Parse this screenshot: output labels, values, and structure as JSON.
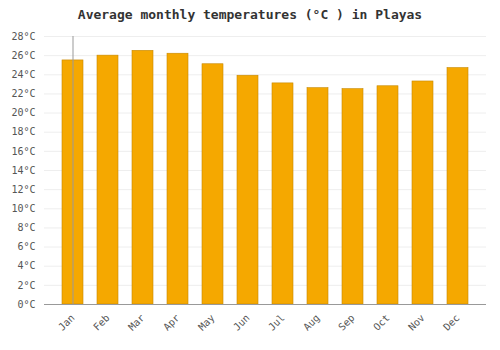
{
  "chart_data": {
    "type": "bar",
    "title": "Average monthly temperatures (°C ) in Playas",
    "categories": [
      "Jan",
      "Feb",
      "Mar",
      "Apr",
      "May",
      "Jun",
      "Jul",
      "Aug",
      "Sep",
      "Oct",
      "Nov",
      "Dec"
    ],
    "values": [
      25.5,
      26.0,
      26.5,
      26.2,
      25.1,
      23.9,
      23.1,
      22.6,
      22.5,
      22.8,
      23.3,
      24.7
    ],
    "color": "#F5A800",
    "ylim": [
      0,
      28
    ],
    "yticks": [
      {
        "value": 0,
        "label": "0°C"
      },
      {
        "value": 2,
        "label": "2°C"
      },
      {
        "value": 4,
        "label": "4°C"
      },
      {
        "value": 6,
        "label": "6°C"
      },
      {
        "value": 8,
        "label": "8°C"
      },
      {
        "value": 10,
        "label": "10°C"
      },
      {
        "value": 12,
        "label": "12°C"
      },
      {
        "value": 14,
        "label": "14°C"
      },
      {
        "value": 16,
        "label": "16°C"
      },
      {
        "value": 18,
        "label": "18°C"
      },
      {
        "value": 20,
        "label": "20°C"
      },
      {
        "value": 22,
        "label": "22°C"
      },
      {
        "value": 24,
        "label": "24°C"
      },
      {
        "value": 26,
        "label": "26°C"
      },
      {
        "value": 28,
        "label": "28°C"
      }
    ],
    "grid": true
  }
}
